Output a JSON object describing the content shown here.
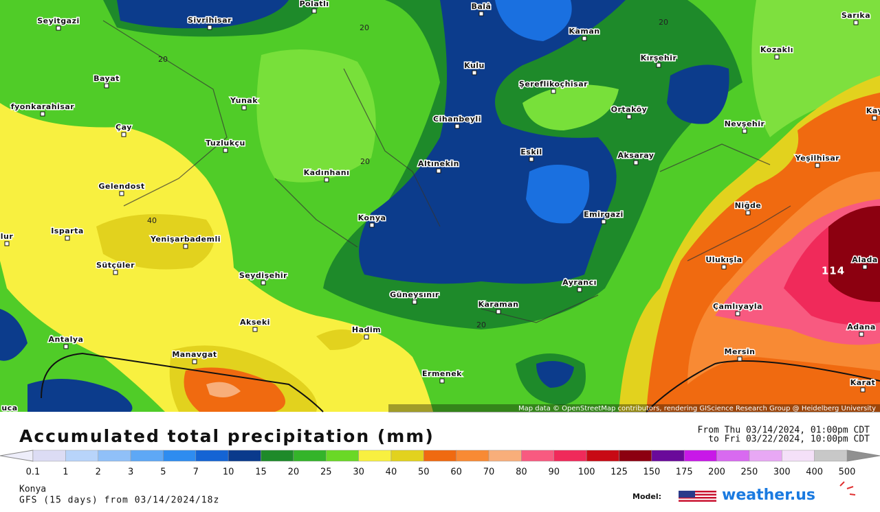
{
  "map": {
    "places": [
      "Polatlı",
      "Balâ",
      "Sarıka",
      "Seyitgazi",
      "Sivrihisar",
      "Kaman",
      "Kozaklı",
      "Kırşehir",
      "Bayat",
      "Kulu",
      "Şereflikoçhisar",
      "Yunak",
      "Ortaköy",
      "Kay",
      "fyonkarahisar",
      "Cihanbeyli",
      "Nevşehir",
      "Çay",
      "Tuzlukçu",
      "Eskil",
      "Aksaray",
      "Yeşilhisar",
      "Altınekin",
      "Kadınhanı",
      "Gelendost",
      "Niğde",
      "Konya",
      "Emirgazi",
      "Isparta",
      "lur",
      "Yenişarbademli",
      "Sütçüler",
      "Alada",
      "Ulukışla",
      "Seydişehir",
      "Ayrancı",
      "Güneysınır",
      "Karaman",
      "Çamlıyayla",
      "Akseki",
      "Hadim",
      "Adana",
      "Antalya",
      "Manavgat",
      "Mersin",
      "Ermenek",
      "Karat",
      "uca"
    ],
    "contour_labels": [
      "20",
      "20",
      "20",
      "20",
      "40",
      "20"
    ],
    "max_label": "114",
    "attribution": "Map data © OpenStreetMap contributors, rendering GIScience Research Group @ Heidelberg University"
  },
  "footer": {
    "title": "Accumulated total precipitation (mm)",
    "from": "From Thu 03/14/2024, 01:00pm CDT",
    "to": "to Fri 03/22/2024, 10:00pm CDT",
    "location": "Konya",
    "run": "GFS (15 days) from 03/14/2024/18z",
    "model_label": "Model:",
    "brand": "weather.us"
  },
  "legend": {
    "values": [
      0.1,
      1,
      2,
      3,
      5,
      7,
      10,
      15,
      20,
      25,
      30,
      40,
      50,
      60,
      70,
      80,
      90,
      100,
      125,
      150,
      175,
      200,
      250,
      300,
      400,
      500
    ],
    "colors": [
      "#dcdcf4",
      "#b8d4fa",
      "#90c0f8",
      "#5ea8f6",
      "#2e8cf0",
      "#1464d4",
      "#0a3a8c",
      "#1e8a2a",
      "#34b42a",
      "#6ad826",
      "#f8f040",
      "#e2d21e",
      "#f06a10",
      "#f88a34",
      "#f8ae7a",
      "#f85a80",
      "#f02a5a",
      "#c80a14",
      "#8c0010",
      "#6a0a9a",
      "#c818e8",
      "#d86af0",
      "#e8a8f4",
      "#f4e0f8",
      "#c8c8c8"
    ]
  }
}
